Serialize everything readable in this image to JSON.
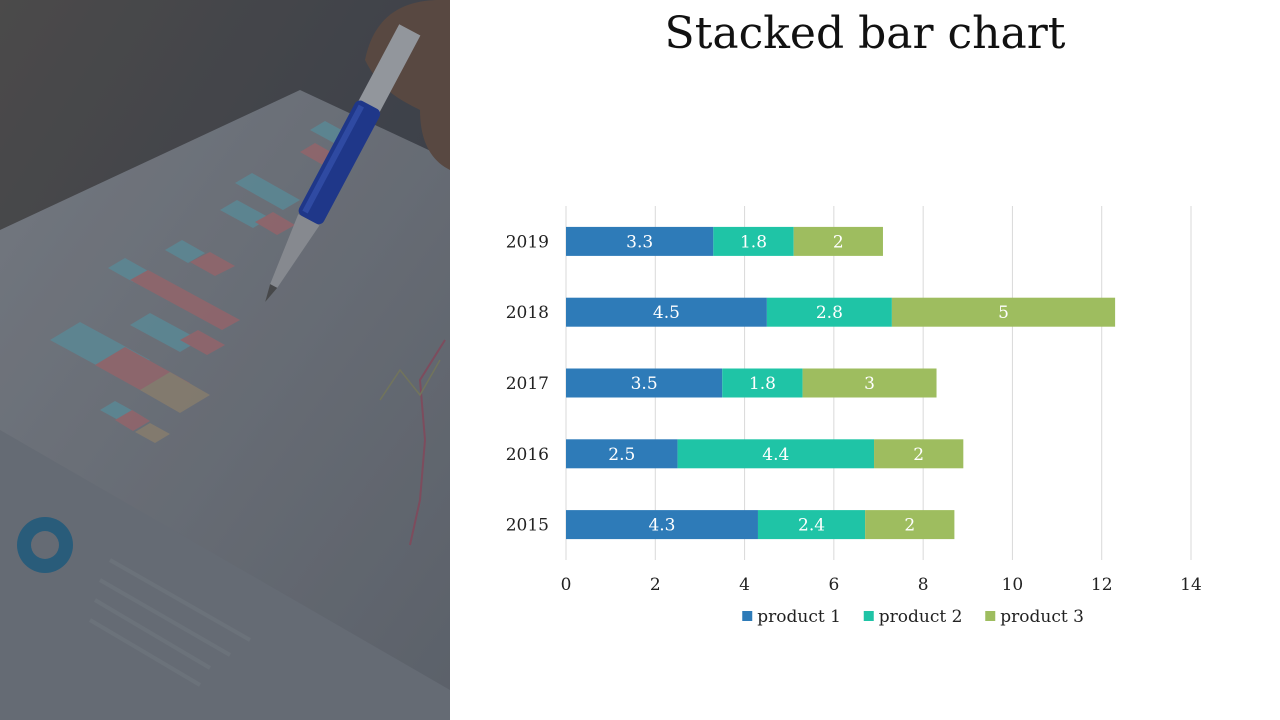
{
  "slide": {
    "title": "Stacked bar chart"
  },
  "photo": {
    "icon": "pen-on-chart-document-photo"
  },
  "chart_data": {
    "type": "bar",
    "orientation": "horizontal",
    "stacked": true,
    "title": "Stacked bar chart",
    "categories": [
      "2015",
      "2016",
      "2017",
      "2018",
      "2019"
    ],
    "series": [
      {
        "name": "product 1",
        "color": "#2e7bb8",
        "values": [
          4.3,
          2.5,
          3.5,
          4.5,
          3.3
        ]
      },
      {
        "name": "product 2",
        "color": "#1fc4a6",
        "values": [
          2.4,
          4.4,
          1.8,
          2.8,
          1.8
        ]
      },
      {
        "name": "product 3",
        "color": "#9ebd5f",
        "values": [
          2,
          2,
          3,
          5,
          2
        ]
      }
    ],
    "xlim": [
      0,
      14
    ],
    "xticks": [
      0,
      2,
      4,
      6,
      8,
      10,
      12,
      14
    ],
    "grid": true,
    "legend": "bottom",
    "data_labels": true
  }
}
